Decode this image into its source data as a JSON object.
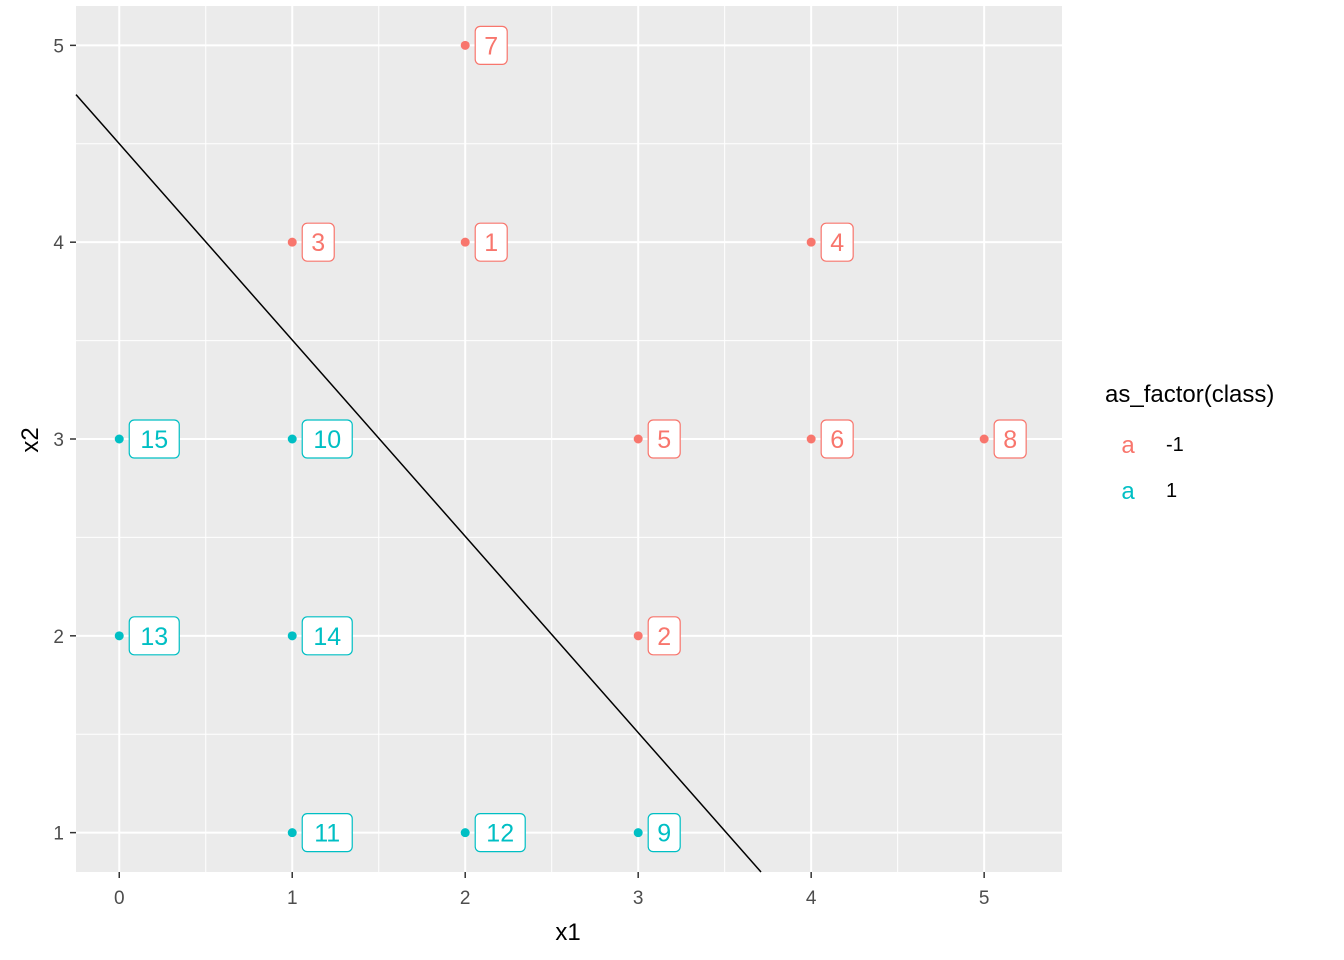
{
  "chart_data": {
    "type": "scatter",
    "title": "",
    "xlabel": "x1",
    "ylabel": "x2",
    "xlim": [
      -0.25,
      5.45
    ],
    "ylim": [
      0.8,
      5.2
    ],
    "xticks": [
      0,
      1,
      2,
      3,
      4,
      5
    ],
    "yticks": [
      1,
      2,
      3,
      4,
      5
    ],
    "grid": true,
    "legend": {
      "title": "as_factor(class)",
      "placement": "right",
      "key_glyph": "a",
      "entries": [
        {
          "label": "-1",
          "color": "#F8766D"
        },
        {
          "label": "1",
          "color": "#00BFC4"
        }
      ]
    },
    "points": [
      {
        "id": "1",
        "x": 2,
        "y": 4,
        "class": "-1"
      },
      {
        "id": "2",
        "x": 3,
        "y": 2,
        "class": "-1"
      },
      {
        "id": "3",
        "x": 1,
        "y": 4,
        "class": "-1"
      },
      {
        "id": "4",
        "x": 4,
        "y": 4,
        "class": "-1"
      },
      {
        "id": "5",
        "x": 3,
        "y": 3,
        "class": "-1"
      },
      {
        "id": "6",
        "x": 4,
        "y": 3,
        "class": "-1"
      },
      {
        "id": "7",
        "x": 2,
        "y": 5,
        "class": "-1"
      },
      {
        "id": "8",
        "x": 5,
        "y": 3,
        "class": "-1"
      },
      {
        "id": "9",
        "x": 3,
        "y": 1,
        "class": "1"
      },
      {
        "id": "10",
        "x": 1,
        "y": 3,
        "class": "1"
      },
      {
        "id": "11",
        "x": 1,
        "y": 1,
        "class": "1"
      },
      {
        "id": "12",
        "x": 2,
        "y": 1,
        "class": "1"
      },
      {
        "id": "13",
        "x": 0,
        "y": 2,
        "class": "1"
      },
      {
        "id": "14",
        "x": 1,
        "y": 2,
        "class": "1"
      },
      {
        "id": "15",
        "x": 0,
        "y": 3,
        "class": "1"
      }
    ],
    "line": {
      "x": [
        -0.25,
        3.71
      ],
      "y": [
        4.75,
        0.8
      ],
      "color": "#000000"
    },
    "colors": {
      "-1": "#F8766D",
      "1": "#00BFC4"
    }
  }
}
